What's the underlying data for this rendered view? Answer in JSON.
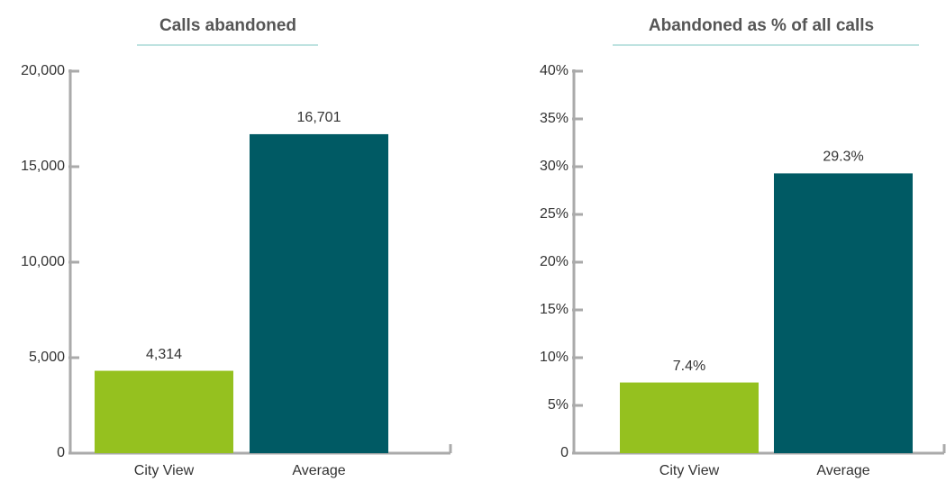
{
  "chart_data": [
    {
      "type": "bar",
      "title": "Calls abandoned",
      "categories": [
        "City View",
        "Average"
      ],
      "values": [
        4314,
        16701
      ],
      "value_labels": [
        "4,314",
        "16,701"
      ],
      "colors": [
        "#95c11f",
        "#005a64"
      ],
      "ylim": [
        0,
        20000
      ],
      "yticks": [
        0,
        {
          "value": 5000,
          "label": "5,000"
        },
        {
          "value": 10000,
          "label": "10,000"
        },
        {
          "value": 15000,
          "label": "15,000"
        },
        {
          "value": 20000,
          "label": "20,000"
        }
      ]
    },
    {
      "type": "bar",
      "title": "Abandoned as % of all calls",
      "categories": [
        "City View",
        "Average"
      ],
      "values": [
        7.4,
        29.3
      ],
      "value_labels": [
        "7.4%",
        "29.3%"
      ],
      "colors": [
        "#95c11f",
        "#005a64"
      ],
      "ylim": [
        0,
        40
      ],
      "yticks": [
        0,
        {
          "value": 5,
          "label": "5%"
        },
        {
          "value": 10,
          "label": "10%"
        },
        {
          "value": 15,
          "label": "15%"
        },
        {
          "value": 20,
          "label": "20%"
        },
        {
          "value": 25,
          "label": "25%"
        },
        {
          "value": 30,
          "label": "30%"
        },
        {
          "value": 35,
          "label": "35%"
        },
        {
          "value": 40,
          "label": "40%"
        }
      ]
    }
  ]
}
